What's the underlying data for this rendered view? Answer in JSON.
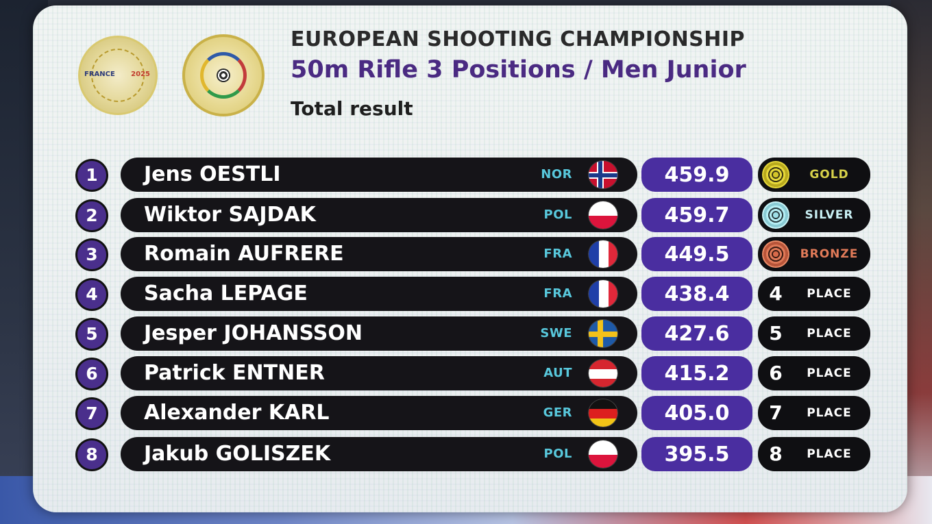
{
  "header": {
    "title": "EUROPEAN SHOOTING CHAMPIONSHIP",
    "subtitle": "50m Rifle 3 Positions / Men Junior",
    "result_label": "Total result",
    "logo_event_text_left": "FRANCE",
    "logo_event_text_right": "2025"
  },
  "colors": {
    "rank_circle": "#4a2f8c",
    "name_pill": "#151418",
    "nation_code": "#58c8dc",
    "score_pill": "#4a2ea0",
    "medal_pill": "#0f0f12",
    "gold_label": "#d8d24a",
    "silver_label": "#c9f0f4",
    "bronze_label": "#e07a58",
    "place_label": "#ffffff",
    "title": "#2a2a2a",
    "subtitle": "#4a2a82"
  },
  "results": [
    {
      "rank": "1",
      "name": "Jens OESTLI",
      "nation": "NOR",
      "flag": "flag-norway-icon",
      "score": "459.9",
      "medal_type": "gold",
      "medal_label": "GOLD",
      "place_number": ""
    },
    {
      "rank": "2",
      "name": "Wiktor SAJDAK",
      "nation": "POL",
      "flag": "flag-poland-icon",
      "score": "459.7",
      "medal_type": "silver",
      "medal_label": "SILVER",
      "place_number": ""
    },
    {
      "rank": "3",
      "name": "Romain AUFRERE",
      "nation": "FRA",
      "flag": "flag-france-icon",
      "score": "449.5",
      "medal_type": "bronze",
      "medal_label": "BRONZE",
      "place_number": ""
    },
    {
      "rank": "4",
      "name": "Sacha LEPAGE",
      "nation": "FRA",
      "flag": "flag-france-icon",
      "score": "438.4",
      "medal_type": "place",
      "medal_label": "PLACE",
      "place_number": "4"
    },
    {
      "rank": "5",
      "name": "Jesper JOHANSSON",
      "nation": "SWE",
      "flag": "flag-sweden-icon",
      "score": "427.6",
      "medal_type": "place",
      "medal_label": "PLACE",
      "place_number": "5"
    },
    {
      "rank": "6",
      "name": "Patrick ENTNER",
      "nation": "AUT",
      "flag": "flag-austria-icon",
      "score": "415.2",
      "medal_type": "place",
      "medal_label": "PLACE",
      "place_number": "6"
    },
    {
      "rank": "7",
      "name": "Alexander KARL",
      "nation": "GER",
      "flag": "flag-germany-icon",
      "score": "405.0",
      "medal_type": "place",
      "medal_label": "PLACE",
      "place_number": "7"
    },
    {
      "rank": "8",
      "name": "Jakub GOLISZEK",
      "nation": "POL",
      "flag": "flag-poland-icon",
      "score": "395.5",
      "medal_type": "place",
      "medal_label": "PLACE",
      "place_number": "8"
    }
  ]
}
